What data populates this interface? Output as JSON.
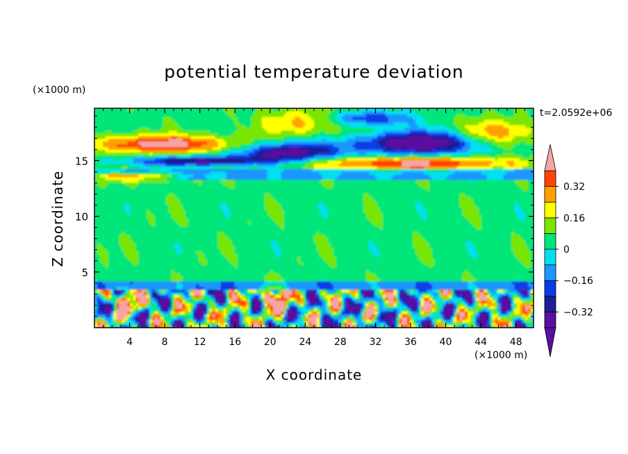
{
  "chart_data": {
    "type": "heatmap",
    "title": "potential temperature deviation",
    "xlabel": "X coordinate",
    "ylabel": "Z coordinate",
    "x_unit": "(×1000 m)",
    "y_unit": "(×1000 m)",
    "time_label": "t=2.0592e+06",
    "xlim": [
      0,
      50
    ],
    "ylim": [
      0,
      19.7
    ],
    "x_ticks": [
      4,
      8,
      12,
      16,
      20,
      24,
      28,
      32,
      36,
      40,
      44,
      48
    ],
    "y_ticks": [
      5,
      10,
      15
    ],
    "x_tick_labels": [
      "4",
      "8",
      "12",
      "16",
      "20",
      "24",
      "28",
      "32",
      "36",
      "40",
      "44",
      "48"
    ],
    "y_tick_labels": [
      "5",
      "10",
      "15"
    ],
    "colorbar": {
      "levels": [
        -0.4,
        -0.32,
        -0.24,
        -0.16,
        -0.08,
        0,
        0.08,
        0.16,
        0.24,
        0.32,
        0.4
      ],
      "tick_labels": [
        "0.32",
        "0.16",
        "0",
        "−0.16",
        "−0.32"
      ],
      "tick_values": [
        0.32,
        0.16,
        0,
        -0.16,
        -0.32
      ],
      "colors": [
        "#5a0fa0",
        "#1e1e96",
        "#0a3ce6",
        "#1e96ff",
        "#00e0f0",
        "#00e678",
        "#78e600",
        "#ffff00",
        "#ffa000",
        "#ff4500",
        "#e60000"
      ],
      "over_color": "#f4a6a6",
      "under_color": "#5a0fa0"
    },
    "field_regions": [
      {
        "kind": "background",
        "value": 0.04
      },
      {
        "kind": "band",
        "z": [
          0,
          3.5
        ],
        "value": "mixed ±0.4"
      },
      {
        "kind": "band",
        "z": [
          13.2,
          14.2
        ],
        "value": -0.1
      },
      {
        "kind": "blob",
        "x": [
          16,
          28
        ],
        "z": [
          14.5,
          17
        ],
        "value": -0.36
      },
      {
        "kind": "blob",
        "x": [
          30,
          47
        ],
        "z": [
          15.5,
          18.5
        ],
        "value": -0.36
      },
      {
        "kind": "blob",
        "x": [
          0,
          20
        ],
        "z": [
          15,
          17.5
        ],
        "value": 0.42
      },
      {
        "kind": "blob",
        "x": [
          25,
          50
        ],
        "z": [
          14,
          15.5
        ],
        "value": 0.42
      },
      {
        "kind": "blob",
        "x": [
          20,
          30
        ],
        "z": [
          17,
          19.7
        ],
        "value": 0.2
      }
    ]
  }
}
